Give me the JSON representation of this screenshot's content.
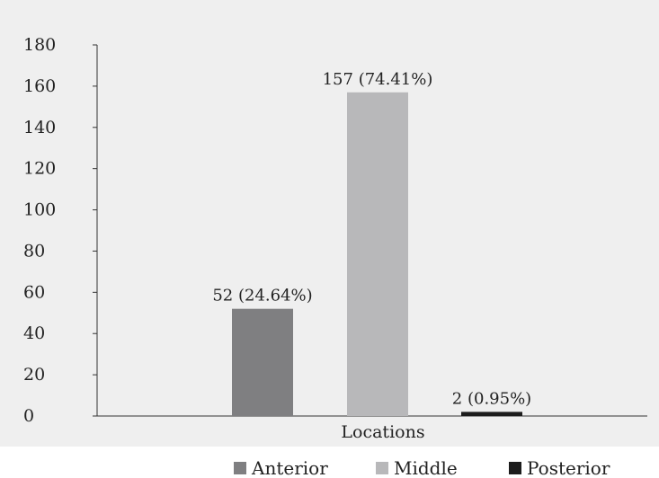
{
  "chart_data": {
    "type": "bar",
    "xlabel": "Locations",
    "ylim": [
      0,
      180
    ],
    "yticks": [
      0,
      20,
      40,
      60,
      80,
      100,
      120,
      140,
      160,
      180
    ],
    "grid": false,
    "legend_position": "bottom",
    "series": [
      {
        "name": "Anterior",
        "value": 52,
        "label": "52 (24.64%)",
        "color": "#7f7f81"
      },
      {
        "name": "Middle",
        "value": 157,
        "label": "157 (74.41%)",
        "color": "#b8b8ba"
      },
      {
        "name": "Posterior",
        "value": 2,
        "label": "2 (0.95%)",
        "color": "#1c1c1c"
      }
    ]
  }
}
